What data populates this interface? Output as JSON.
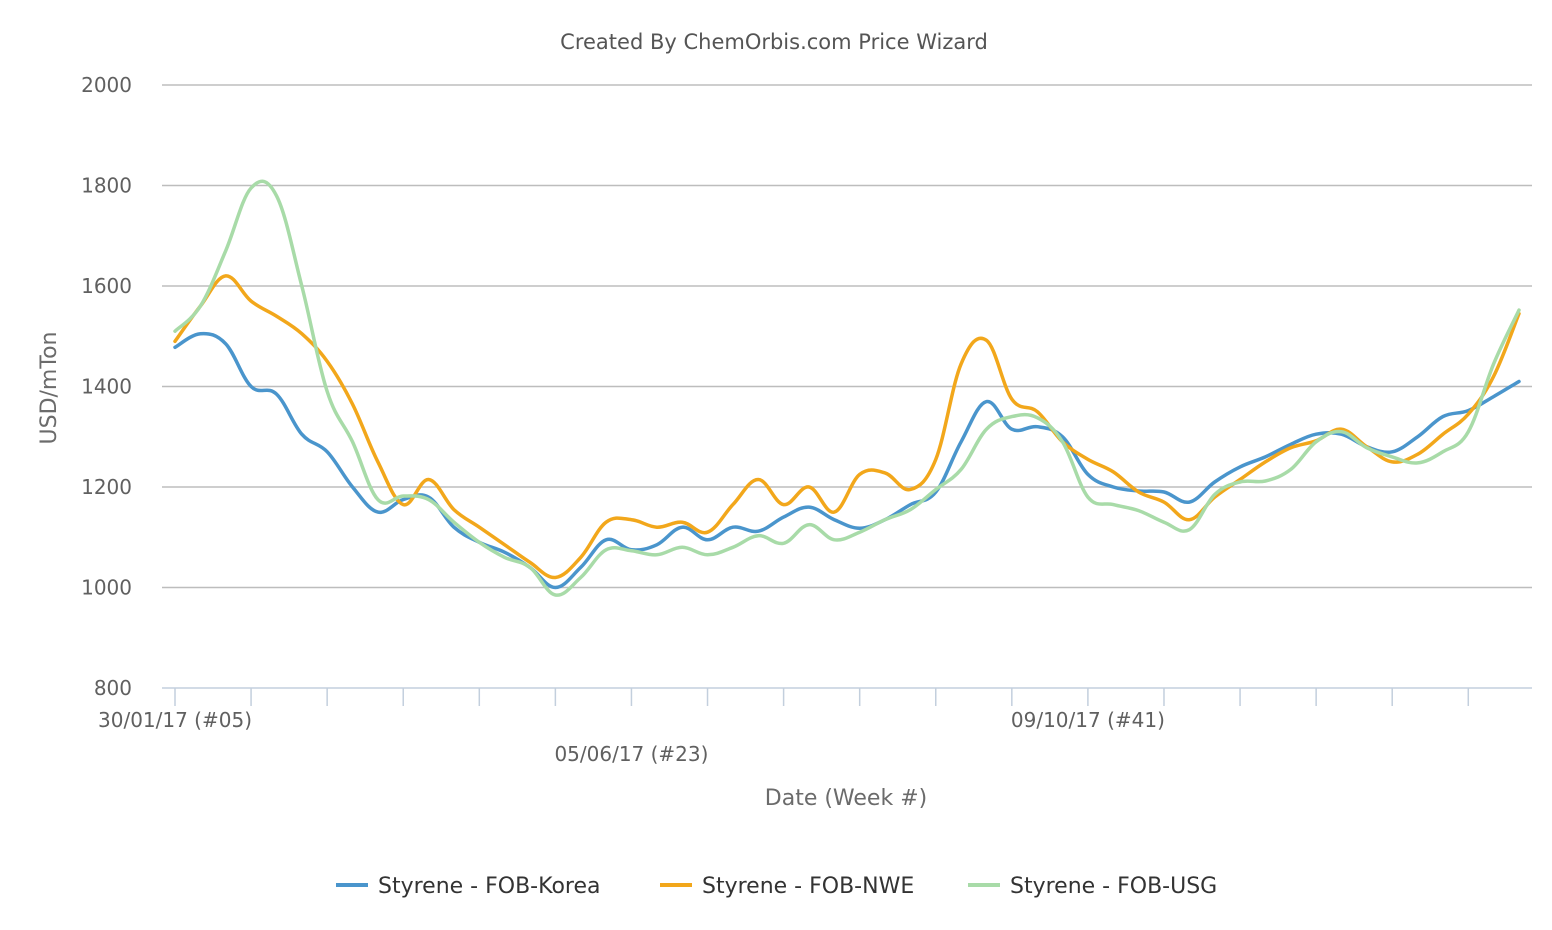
{
  "chart_data": {
    "type": "line",
    "title": "Created By ChemOrbis.com Price Wizard",
    "xlabel": "Date (Week #)",
    "ylabel": "USD/mTon",
    "ylim": [
      800,
      2000
    ],
    "yticks": [
      800,
      1000,
      1200,
      1400,
      1600,
      1800,
      2000
    ],
    "grid": true,
    "legend_position": "bottom",
    "x_tick_labels": [
      {
        "week": 5,
        "label": "30/01/17 (#05)"
      },
      {
        "week": 23,
        "label": "05/06/17 (#23)"
      },
      {
        "week": 41,
        "label": "09/10/17 (#41)"
      }
    ],
    "x": [
      5,
      6,
      7,
      8,
      9,
      10,
      11,
      12,
      13,
      14,
      15,
      16,
      17,
      18,
      19,
      20,
      21,
      22,
      23,
      24,
      25,
      26,
      27,
      28,
      29,
      30,
      31,
      32,
      33,
      34,
      35,
      36,
      37,
      38,
      39,
      40,
      41,
      42,
      43,
      44,
      45,
      46,
      47,
      48,
      49,
      50,
      51,
      52,
      53,
      54,
      55,
      56,
      57,
      58
    ],
    "series": [
      {
        "name": "Styrene - FOB-Korea",
        "color": "#4a95cc",
        "values": [
          1478,
          1505,
          1485,
          1400,
          1385,
          1305,
          1270,
          1200,
          1150,
          1175,
          1180,
          1120,
          1090,
          1070,
          1040,
          1000,
          1040,
          1095,
          1075,
          1085,
          1120,
          1095,
          1120,
          1112,
          1140,
          1160,
          1135,
          1118,
          1135,
          1165,
          1190,
          1290,
          1370,
          1315,
          1320,
          1300,
          1225,
          1200,
          1192,
          1190,
          1170,
          1210,
          1240,
          1260,
          1285,
          1305,
          1305,
          1280,
          1270,
          1300,
          1340,
          1352,
          1380,
          1410
        ]
      },
      {
        "name": "Styrene - FOB-NWE",
        "color": "#f2a71b",
        "values": [
          1490,
          1560,
          1620,
          1570,
          1540,
          1505,
          1450,
          1365,
          1250,
          1165,
          1215,
          1155,
          1120,
          1085,
          1050,
          1020,
          1060,
          1130,
          1135,
          1120,
          1130,
          1110,
          1165,
          1215,
          1165,
          1200,
          1150,
          1225,
          1228,
          1195,
          1255,
          1445,
          1492,
          1375,
          1350,
          1290,
          1255,
          1230,
          1190,
          1170,
          1135,
          1180,
          1215,
          1250,
          1278,
          1292,
          1315,
          1280,
          1250,
          1265,
          1305,
          1345,
          1420,
          1545
        ]
      },
      {
        "name": "Styrene - FOB-USG",
        "color": "#a8dba8",
        "values": [
          1510,
          1560,
          1670,
          1795,
          1780,
          1600,
          1390,
          1290,
          1175,
          1182,
          1175,
          1130,
          1090,
          1060,
          1040,
          985,
          1020,
          1075,
          1073,
          1065,
          1080,
          1065,
          1080,
          1103,
          1088,
          1125,
          1095,
          1110,
          1135,
          1155,
          1195,
          1235,
          1315,
          1340,
          1338,
          1290,
          1180,
          1165,
          1153,
          1130,
          1115,
          1185,
          1210,
          1212,
          1235,
          1290,
          1310,
          1278,
          1260,
          1248,
          1270,
          1310,
          1445,
          1552
        ]
      }
    ]
  }
}
